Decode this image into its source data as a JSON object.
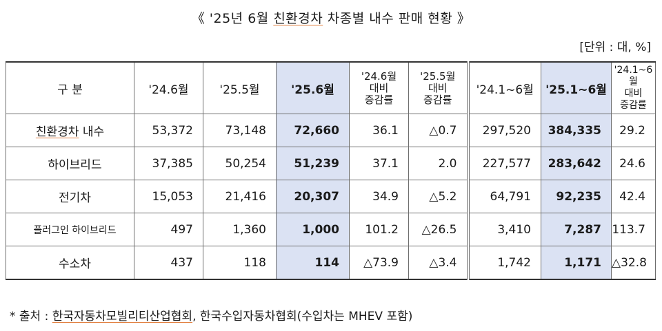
{
  "title": {
    "prefix": "《 '25년 6월 ",
    "highlight": "친환경차",
    "suffix": " 차종별 내수 판매 현황 》"
  },
  "unit": "[단위 : 대, %]",
  "headers": {
    "category": "구 분",
    "c1": "'24.6월",
    "c2": "'25.5월",
    "c3": "'25.6월",
    "c4": [
      "'24.6월",
      "대비",
      "증감률"
    ],
    "c5": [
      "'25.5월",
      "대비",
      "증감률"
    ],
    "c6": "'24.1~6월",
    "c7": "'25.1~6월",
    "c8": [
      "'24.1~6월",
      "대비",
      "증감률"
    ]
  },
  "rows": [
    {
      "category": "친환경차 내수",
      "category_ul": "친환경차",
      "category_rest": " 내수",
      "c1": "53,372",
      "c2": "73,148",
      "c3": "72,660",
      "c4": "36.1",
      "c5": "△0.7",
      "c6": "297,520",
      "c7": "384,335",
      "c8": "29.2"
    },
    {
      "category": "하이브리드",
      "c1": "37,385",
      "c2": "50,254",
      "c3": "51,239",
      "c4": "37.1",
      "c5": "2.0",
      "c6": "227,577",
      "c7": "283,642",
      "c8": "24.6"
    },
    {
      "category": "전기차",
      "c1": "15,053",
      "c2": "21,416",
      "c3": "20,307",
      "c4": "34.9",
      "c5": "△5.2",
      "c6": "64,791",
      "c7": "92,235",
      "c8": "42.4"
    },
    {
      "category": "플러그인 하이브리드",
      "c1": "497",
      "c2": "1,360",
      "c3": "1,000",
      "c4": "101.2",
      "c5": "△26.5",
      "c6": "3,410",
      "c7": "7,287",
      "c8": "113.7"
    },
    {
      "category": "수소차",
      "c1": "437",
      "c2": "118",
      "c3": "114",
      "c4": "△73.9",
      "c5": "△3.4",
      "c6": "1,742",
      "c7": "1,171",
      "c8": "△32.8"
    }
  ],
  "footnote": {
    "prefix": "* 출처 : ",
    "source1": "한국자동차모빌리티산업협회",
    "rest": ", 한국수입자동차협회(수입차는 MHEV 포함)"
  }
}
